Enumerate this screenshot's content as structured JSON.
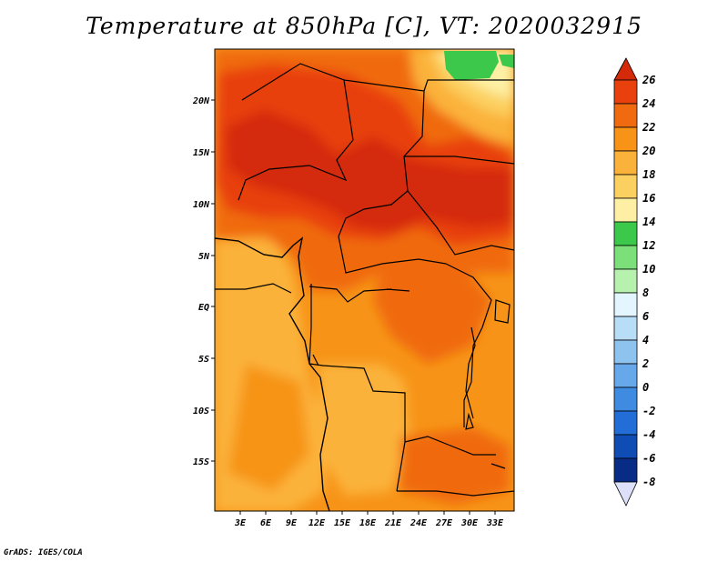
{
  "title": "Temperature at 850hPa [C], VT: 2020032915",
  "credit": "GrADS: IGES/COLA",
  "map": {
    "lat_labels": [
      "20N",
      "15N",
      "10N",
      "5N",
      "EQ",
      "5S",
      "10S",
      "15S"
    ],
    "lon_labels": [
      "3E",
      "6E",
      "9E",
      "12E",
      "15E",
      "18E",
      "21E",
      "24E",
      "27E",
      "30E",
      "33E"
    ]
  },
  "colorbar": {
    "levels": [
      "26",
      "24",
      "22",
      "20",
      "18",
      "16",
      "14",
      "12",
      "10",
      "8",
      "6",
      "4",
      "2",
      "0",
      "-2",
      "-4",
      "-6",
      "-8"
    ],
    "colors": {
      "over_26": "#d42a0a",
      "24_26": "#e8410e",
      "22_24": "#f06a10",
      "20_22": "#f79418",
      "18_20": "#fbb23a",
      "16_18": "#fcd060",
      "14_16": "#fdf0a4",
      "12_14": "#3cc84a",
      "10_12": "#7be07a",
      "8_10": "#b6f2ad",
      "6_8": "#e3f6ff",
      "4_6": "#b8ddf6",
      "2_4": "#8ec3f0",
      "0_2": "#66a8ea",
      "m2_0": "#3f8be2",
      "m4_m2": "#226ed6",
      "m6_m4": "#0f4cb4",
      "m8_m6": "#082c86",
      "under_m8": "#dde0f8"
    }
  }
}
